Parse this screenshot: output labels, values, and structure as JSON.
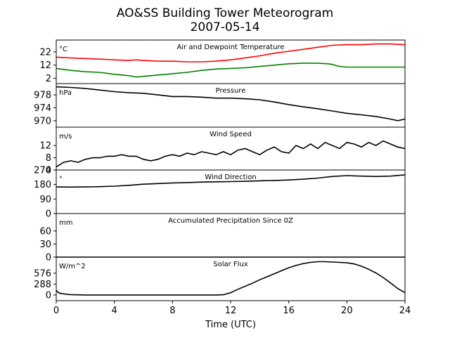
{
  "chart_data": {
    "type": "line",
    "title": "AO&SS Building Tower Meteorogram",
    "subtitle": "2007-05-14",
    "xlabel": "Time (UTC)",
    "xlim": [
      0,
      24
    ],
    "xticks": [
      0,
      4,
      8,
      12,
      16,
      20,
      24
    ],
    "panels": [
      {
        "title": "Air and Dewpoint Temperature",
        "unit": "°C",
        "ylim": [
          -2,
          31
        ],
        "yticks": [
          2,
          12,
          22
        ],
        "series": [
          {
            "color": "#ff0000",
            "x": [
              0,
              1,
              2,
              3,
              4,
              5,
              5.5,
              6,
              7,
              8,
              9,
              10,
              11,
              12,
              13,
              14,
              15,
              16,
              17,
              18,
              19,
              20,
              21,
              22,
              23,
              24
            ],
            "y": [
              18,
              17.5,
              17,
              16.5,
              16,
              15.5,
              16,
              15.5,
              15,
              15,
              14.5,
              14.5,
              15,
              16,
              17.5,
              19,
              21,
              22.5,
              24,
              25.5,
              27,
              27.5,
              27.5,
              28,
              28,
              27.5
            ]
          },
          {
            "color": "#008000",
            "x": [
              0,
              1,
              2,
              3,
              4,
              5,
              5.5,
              6,
              7,
              8,
              9,
              10,
              11,
              12,
              13,
              14,
              15,
              16,
              17,
              18,
              18.7,
              19,
              19.5,
              20,
              21,
              22,
              23,
              24
            ],
            "y": [
              9.5,
              8,
              7,
              6.5,
              5,
              4,
              3,
              3.5,
              4.5,
              5.5,
              6.5,
              8,
              9,
              9.5,
              10,
              11,
              12,
              13,
              13.5,
              13.5,
              13,
              12.5,
              11,
              10.5,
              10.5,
              10.5,
              10.5,
              10.5
            ]
          }
        ]
      },
      {
        "title": "Pressure",
        "unit": "hPa",
        "ylim": [
          968,
          981.5
        ],
        "yticks": [
          970,
          974,
          978
        ],
        "series": [
          {
            "color": "#000000",
            "x": [
              0,
              1,
              2,
              3,
              4,
              5,
              6,
              7,
              8,
              9,
              10,
              11,
              12,
              13,
              14,
              15,
              16,
              17,
              18,
              19,
              20,
              21,
              22,
              23,
              23.5,
              24
            ],
            "y": [
              980.5,
              980.3,
              980,
              979.5,
              979,
              978.7,
              978.5,
              978,
              977.5,
              977.5,
              977.3,
              977,
              977,
              976.8,
              976.5,
              975.8,
              975,
              974.3,
              973.7,
              973,
              972.3,
              971.8,
              971.3,
              970.5,
              970,
              970.5
            ]
          }
        ]
      },
      {
        "title": "Wind Speed",
        "unit": "m/s",
        "ylim": [
          4,
          18
        ],
        "yticks": [
          4,
          8,
          12
        ],
        "series": [
          {
            "color": "#000000",
            "x": [
              0,
              0.5,
              1,
              1.5,
              2,
              2.5,
              3,
              3.5,
              4,
              4.5,
              5,
              5.5,
              6,
              6.5,
              7,
              7.5,
              8,
              8.5,
              9,
              9.5,
              10,
              10.5,
              11,
              11.5,
              12,
              12.5,
              13,
              13.5,
              14,
              14.5,
              15,
              15.5,
              16,
              16.5,
              17,
              17.5,
              18,
              18.5,
              19,
              19.5,
              20,
              20.5,
              21,
              21.5,
              22,
              22.5,
              23,
              23.5,
              24
            ],
            "y": [
              5,
              6.5,
              7,
              6.5,
              7.5,
              8,
              8,
              8.5,
              8.5,
              9,
              8.5,
              8.5,
              7.5,
              7,
              7.5,
              8.5,
              9,
              8.5,
              9.5,
              9,
              10,
              9.5,
              9,
              10,
              9,
              10.5,
              11,
              10,
              9,
              10.5,
              11.5,
              10,
              9.5,
              12,
              11,
              12.5,
              11,
              13,
              12,
              11,
              13,
              12.5,
              11.5,
              13,
              12,
              13.5,
              12.5,
              11.5,
              11
            ]
          }
        ]
      },
      {
        "title": "Wind Direction",
        "unit": "°",
        "ylim": [
          0,
          270
        ],
        "yticks": [
          0,
          90,
          180,
          270
        ],
        "series": [
          {
            "color": "#000000",
            "x": [
              0,
              1,
              2,
              3,
              4,
              5,
              6,
              7,
              8,
              9,
              10,
              11,
              12,
              13,
              14,
              15,
              16,
              17,
              18,
              19,
              20,
              21,
              22,
              23,
              24
            ],
            "y": [
              165,
              164,
              165,
              167,
              170,
              175,
              182,
              186,
              190,
              192,
              195,
              197,
              198,
              200,
              203,
              205,
              208,
              213,
              220,
              230,
              235,
              232,
              230,
              232,
              240
            ]
          }
        ]
      },
      {
        "title": "Accumulated Precipitation Since 0Z",
        "unit": "mm",
        "ylim": [
          0,
          100
        ],
        "yticks": [
          0,
          30,
          60
        ],
        "series": [
          {
            "color": "#000000",
            "x": [
              0,
              24
            ],
            "y": [
              0,
              0
            ]
          }
        ]
      },
      {
        "title": "Solar Flux",
        "unit": "W/m^2",
        "ylim": [
          -150,
          1000
        ],
        "yticks": [
          0,
          288,
          576
        ],
        "series": [
          {
            "color": "#000000",
            "x": [
              0,
              0.2,
              0.5,
              1,
              2,
              4,
              6,
              8,
              10,
              11,
              11.5,
              12,
              12.5,
              13,
              13.5,
              14,
              14.5,
              15,
              15.5,
              16,
              16.5,
              17,
              17.5,
              18,
              18.5,
              19,
              19.5,
              20,
              20.5,
              21,
              21.5,
              22,
              22.5,
              23,
              23.5,
              24
            ],
            "y": [
              120,
              50,
              30,
              10,
              0,
              0,
              0,
              0,
              0,
              0,
              5,
              60,
              150,
              230,
              310,
              400,
              480,
              560,
              640,
              720,
              780,
              830,
              860,
              880,
              880,
              870,
              860,
              850,
              820,
              760,
              680,
              580,
              460,
              320,
              170,
              60
            ]
          }
        ]
      }
    ]
  }
}
